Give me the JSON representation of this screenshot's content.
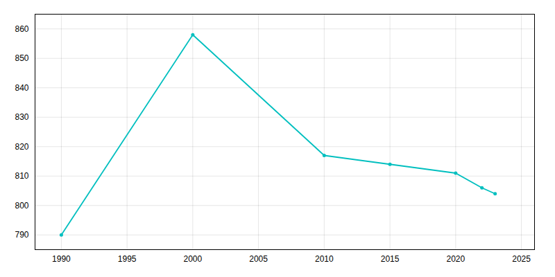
{
  "chart_data": {
    "type": "line",
    "x": [
      1990,
      2000,
      2010,
      2015,
      2020,
      2022,
      2023
    ],
    "values": [
      790,
      858,
      817,
      814,
      811,
      806,
      804
    ],
    "color": "#00BFBF",
    "marker": "circle",
    "xlim": [
      1988,
      2026
    ],
    "xticks": [
      1990,
      1995,
      2000,
      2005,
      2010,
      2015,
      2020,
      2025
    ],
    "ylim": [
      785,
      865
    ],
    "yticks": [
      790,
      800,
      810,
      820,
      830,
      840,
      850,
      860
    ],
    "grid": true
  }
}
